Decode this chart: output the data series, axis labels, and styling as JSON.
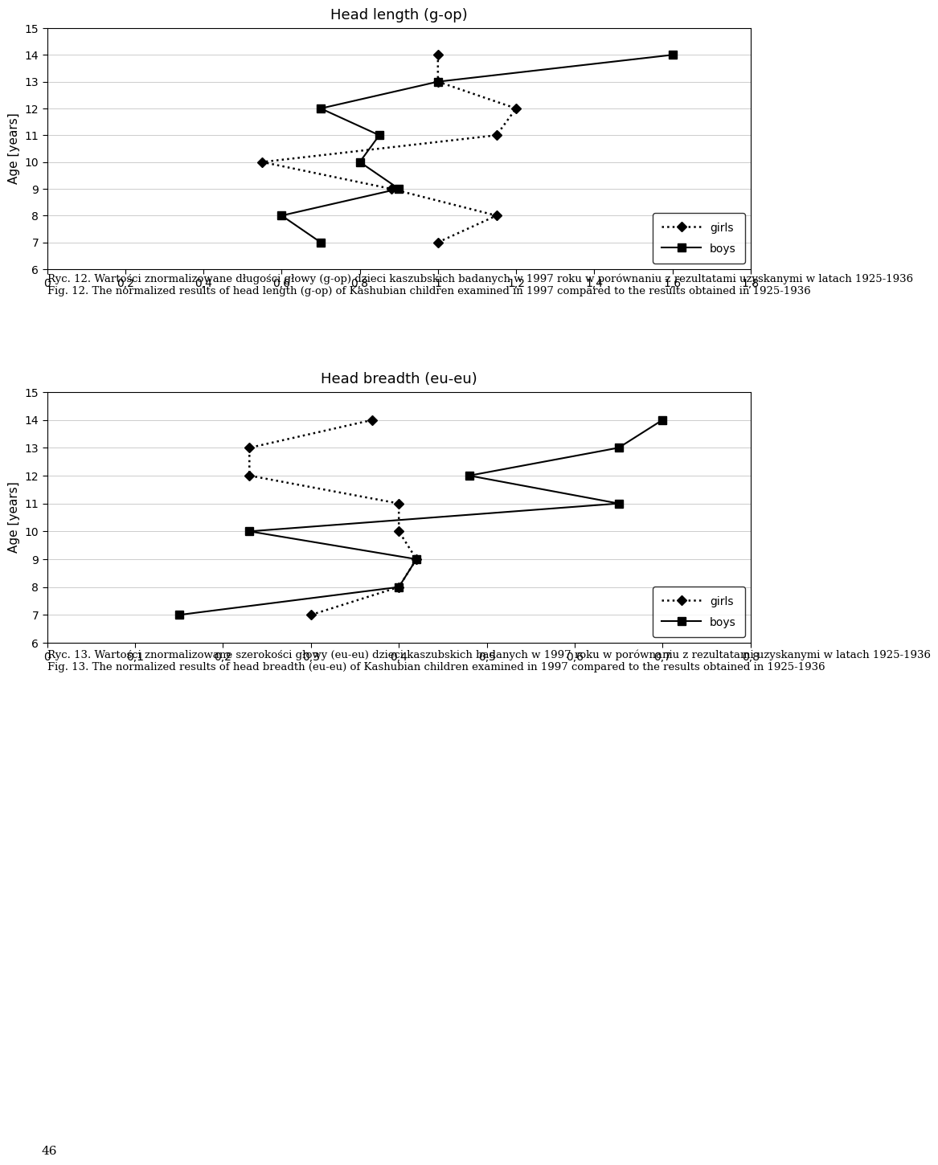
{
  "chart1": {
    "title": "Head length (g-op)",
    "ylabel": "Age [years]",
    "xlim": [
      0,
      1.8
    ],
    "xticks": [
      0,
      0.2,
      0.4,
      0.6,
      0.8,
      1.0,
      1.2,
      1.4,
      1.6,
      1.8
    ],
    "xtick_labels": [
      "0",
      "0,2",
      "0,4",
      "0,6",
      "0,8",
      "1",
      "1,2",
      "1,4",
      "1,6",
      "1,8"
    ],
    "ylim": [
      6,
      15
    ],
    "yticks": [
      6,
      7,
      8,
      9,
      10,
      11,
      12,
      13,
      14,
      15
    ],
    "girls_x": [
      1.0,
      1.15,
      0.88,
      0.55,
      1.15,
      1.2,
      1.0,
      1.0
    ],
    "girls_y": [
      7,
      8,
      9,
      10,
      11,
      12,
      13,
      14
    ],
    "boys_x": [
      0.7,
      0.6,
      0.9,
      0.8,
      0.85,
      0.7,
      1.0,
      1.6
    ],
    "boys_y": [
      7,
      8,
      9,
      10,
      11,
      12,
      13,
      14
    ]
  },
  "chart2": {
    "title": "Head breadth (eu-eu)",
    "ylabel": "Age [years]",
    "xlim": [
      0,
      0.8
    ],
    "xticks": [
      0,
      0.1,
      0.2,
      0.3,
      0.4,
      0.5,
      0.6,
      0.7,
      0.8
    ],
    "xtick_labels": [
      "0",
      "0,1",
      "0,2",
      "0,3",
      "0,4",
      "0,5",
      "0,6",
      "0,7",
      "0,8"
    ],
    "ylim": [
      6,
      15
    ],
    "yticks": [
      6,
      7,
      8,
      9,
      10,
      11,
      12,
      13,
      14,
      15
    ],
    "girls_x": [
      0.3,
      0.4,
      0.42,
      0.4,
      0.4,
      0.23,
      0.23,
      0.37
    ],
    "girls_y": [
      7,
      8,
      9,
      10,
      11,
      12,
      13,
      14
    ],
    "boys_x": [
      0.15,
      0.4,
      0.42,
      0.23,
      0.65,
      0.48,
      0.65,
      0.7
    ],
    "boys_y": [
      7,
      8,
      9,
      10,
      11,
      12,
      13,
      14
    ]
  },
  "caption1_pl": "Ryc. 12. Wartości znormalizowane długości głowy (g-op) dzieci kaszubskich badanych w 1997 roku w porównaniu z rezultatami uzyskanymi w latach 1925-1936",
  "caption1_en": "Fig. 12. The normalized results of head length (g-op) of Kashubian children examined in 1997 compared to the results obtained in 1925-1936",
  "caption2_pl": "Ryc. 13. Wartości znormalizowane szerokości głowy (eu-eu) dzieci kaszubskich badanych w 1997 roku w porównaniu z rezultatami uzyskanymi w latach 1925-1936",
  "caption2_en": "Fig. 13. The normalized results of head breadth (eu-eu) of Kashubian children examined in 1997 compared to the results obtained in 1925-1936",
  "page_number": "46",
  "bg_color": "#ffffff",
  "legend_girls_label": "girls",
  "legend_boys_label": "boys",
  "chart1_legend_loc": "lower right",
  "chart2_legend_loc": "lower right"
}
